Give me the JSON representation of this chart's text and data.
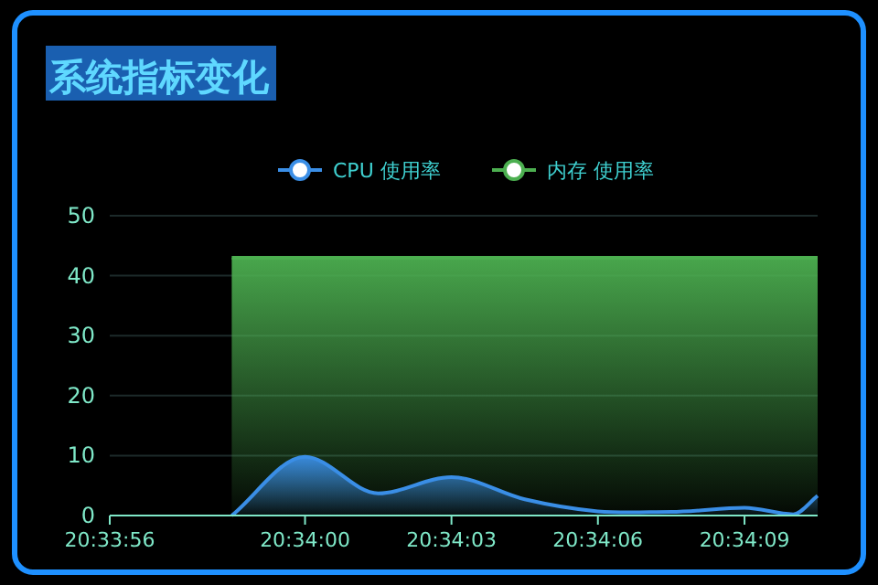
{
  "chart_data": {
    "type": "area",
    "title": "系统指标变化",
    "legend": "top",
    "grid": "y",
    "xlim": [
      20.565556,
      20.569583
    ],
    "xticks": [
      {
        "value": 20.565556,
        "label": "20:33:56"
      },
      {
        "value": 20.566667,
        "label": "20:34:00"
      },
      {
        "value": 20.5675,
        "label": "20:34:03"
      },
      {
        "value": 20.568333,
        "label": "20:34:06"
      },
      {
        "value": 20.569167,
        "label": "20:34:09"
      }
    ],
    "ylim": [
      0,
      50
    ],
    "yticks": [
      0,
      10,
      20,
      30,
      40,
      50
    ],
    "series": [
      {
        "name": "CPU 使用率",
        "color": "#3a8ee6",
        "x": [
          20.56625,
          20.566667,
          20.567083,
          20.5675,
          20.567917,
          20.568333,
          20.56875,
          20.569167,
          20.569444,
          20.569583
        ],
        "values": [
          0,
          9.8,
          3.7,
          6.4,
          2.7,
          0.7,
          0.6,
          1.3,
          0.2,
          3.3
        ]
      },
      {
        "name": "内存 使用率",
        "color": "#4caf50",
        "x": [
          20.56625,
          20.566667,
          20.567083,
          20.5675,
          20.567917,
          20.568333,
          20.56875,
          20.569167,
          20.569444,
          20.569583
        ],
        "values": [
          43,
          43,
          43,
          43,
          43,
          43,
          43,
          43,
          43,
          43
        ]
      }
    ]
  }
}
